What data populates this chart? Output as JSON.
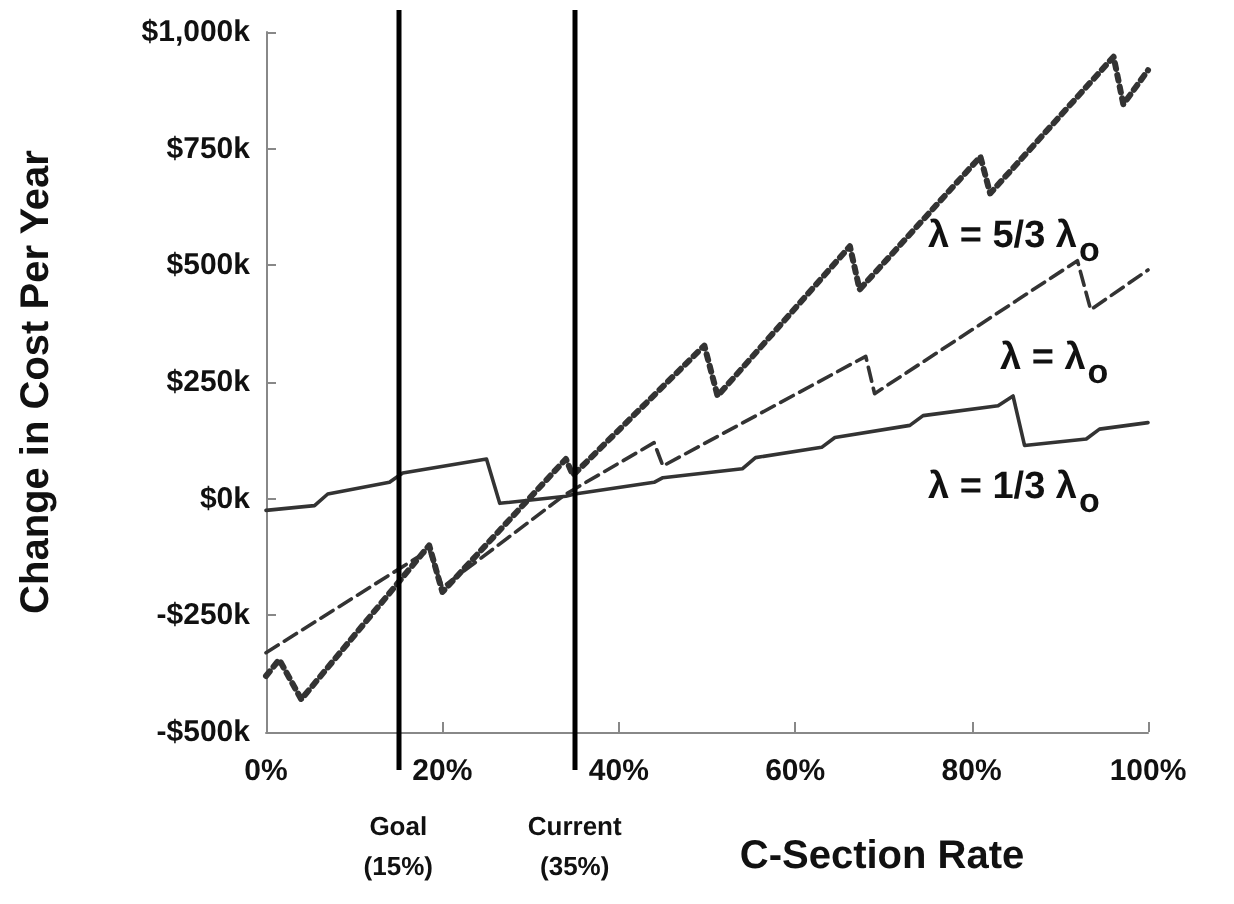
{
  "chart_data": {
    "type": "line",
    "xlabel": "C-Section Rate",
    "ylabel": "Change in Cost Per Year",
    "xlim": [
      0,
      100
    ],
    "xticks": [
      {
        "value": 0,
        "label": "0%"
      },
      {
        "value": 20,
        "label": "20%"
      },
      {
        "value": 40,
        "label": "40%"
      },
      {
        "value": 60,
        "label": "60%"
      },
      {
        "value": 80,
        "label": "80%"
      },
      {
        "value": 100,
        "label": "100%"
      }
    ],
    "ylim": [
      -500,
      1000
    ],
    "yticks": [
      {
        "value": -500,
        "label": "-$500k"
      },
      {
        "value": -250,
        "label": "-$250k"
      },
      {
        "value": 0,
        "label": "$0k"
      },
      {
        "value": 250,
        "label": "$250k"
      },
      {
        "value": 500,
        "label": "$500k"
      },
      {
        "value": 750,
        "label": "$750k"
      },
      {
        "value": 1000,
        "label": "$1,000k"
      }
    ],
    "grid": false,
    "legend": false,
    "marker": "none",
    "series": [
      {
        "name": "λ = 5/3 λ$_{o}$",
        "color": "#333333",
        "line_style": "dotted",
        "x": [
          0,
          1.5,
          4,
          18.5,
          20,
          34,
          34.8,
          49.7,
          51.2,
          66.2,
          67.3,
          81,
          82.1,
          96.1,
          97.2,
          100
        ],
        "values": [
          -380,
          -345,
          -430,
          -100,
          -200,
          85,
          50,
          328,
          220,
          541,
          448,
          733,
          654,
          947,
          845,
          918
        ]
      },
      {
        "name": "λ = λ$_{o}$",
        "color": "#333333",
        "line_style": "dashed",
        "x": [
          0,
          18.5,
          20,
          34,
          44,
          45,
          68,
          69,
          92,
          93.5,
          100
        ],
        "values": [
          -330,
          -110,
          -190,
          10,
          120,
          70,
          305,
          225,
          510,
          405,
          490
        ]
      },
      {
        "name": "λ = 1/3 λ$_{o}$",
        "color": "#333333",
        "line_style": "solid",
        "x": [
          0,
          5.5,
          7,
          14,
          15.5,
          25,
          26.5,
          34,
          35,
          44,
          45,
          54,
          55.5,
          63,
          64.5,
          73,
          74.5,
          83,
          84.7,
          86,
          93,
          94.5,
          100
        ],
        "values": [
          -25,
          -15,
          10,
          35,
          55,
          85,
          -10,
          5,
          10,
          35,
          45,
          64,
          88,
          110,
          131,
          157,
          178,
          199,
          220,
          114,
          128,
          149,
          163
        ]
      }
    ],
    "ref_lines": [
      {
        "axis": "x",
        "value": 15,
        "label": "Goal\n(15%)",
        "color": "#000000"
      },
      {
        "axis": "x",
        "value": 35,
        "label": "Current\n(35%)",
        "color": "#000000"
      }
    ]
  }
}
